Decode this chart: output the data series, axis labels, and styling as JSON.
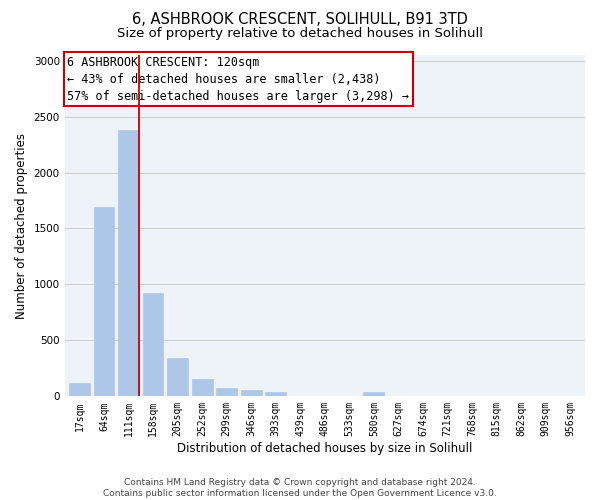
{
  "title": "6, ASHBROOK CRESCENT, SOLIHULL, B91 3TD",
  "subtitle": "Size of property relative to detached houses in Solihull",
  "xlabel": "Distribution of detached houses by size in Solihull",
  "ylabel": "Number of detached properties",
  "footer_line1": "Contains HM Land Registry data © Crown copyright and database right 2024.",
  "footer_line2": "Contains public sector information licensed under the Open Government Licence v3.0.",
  "categories": [
    "17sqm",
    "64sqm",
    "111sqm",
    "158sqm",
    "205sqm",
    "252sqm",
    "299sqm",
    "346sqm",
    "393sqm",
    "439sqm",
    "486sqm",
    "533sqm",
    "580sqm",
    "627sqm",
    "674sqm",
    "721sqm",
    "768sqm",
    "815sqm",
    "862sqm",
    "909sqm",
    "956sqm"
  ],
  "values": [
    115,
    1690,
    2380,
    920,
    340,
    155,
    75,
    55,
    35,
    0,
    0,
    0,
    35,
    0,
    0,
    0,
    0,
    0,
    0,
    0,
    0
  ],
  "bar_color": "#aec6e8",
  "bar_edge_color": "#aec6e8",
  "grid_color": "#cccccc",
  "background_color": "#eef2f9",
  "ylim": [
    0,
    3050
  ],
  "yticks": [
    0,
    500,
    1000,
    1500,
    2000,
    2500,
    3000
  ],
  "annotation_line1": "6 ASHBROOK CRESCENT: 120sqm",
  "annotation_line2": "← 43% of detached houses are smaller (2,438)",
  "annotation_line3": "57% of semi-detached houses are larger (3,298) →",
  "annotation_box_color": "#ffffff",
  "annotation_box_edge_color": "#cc0000",
  "red_line_x": 2.43,
  "title_fontsize": 10.5,
  "subtitle_fontsize": 9.5,
  "tick_fontsize": 7,
  "ylabel_fontsize": 8.5,
  "xlabel_fontsize": 8.5,
  "annotation_fontsize": 8.5,
  "footer_fontsize": 6.5
}
